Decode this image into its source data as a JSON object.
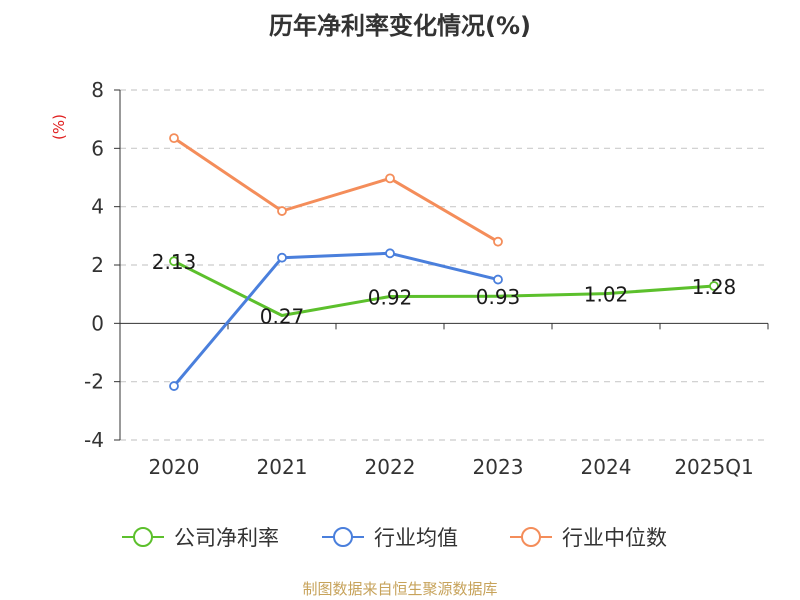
{
  "chart_data": {
    "type": "line",
    "title": "历年净利率变化情况(%)",
    "ylabel": "(%)",
    "categories": [
      "2020",
      "2021",
      "2022",
      "2023",
      "2024",
      "2025Q1"
    ],
    "ylim": [
      -4,
      8
    ],
    "yticks": [
      -4,
      -2,
      0,
      2,
      4,
      6,
      8
    ],
    "grid": true,
    "legend_position": "bottom",
    "series": [
      {
        "name": "公司净利率",
        "color": "#5cc02c",
        "values": [
          2.13,
          0.27,
          0.92,
          0.93,
          1.02,
          1.28
        ],
        "labels": [
          "2.13",
          "0.27",
          "0.92",
          "0.93",
          "1.02",
          "1.28"
        ],
        "show_labels": true,
        "markers": [
          true,
          false,
          false,
          false,
          false,
          true
        ]
      },
      {
        "name": "行业均值",
        "color": "#4a7fdc",
        "values": [
          -2.15,
          2.25,
          2.4,
          1.5,
          null,
          null
        ],
        "show_labels": false,
        "markers": [
          true,
          true,
          true,
          true,
          false,
          false
        ]
      },
      {
        "name": "行业中位数",
        "color": "#f48d5a",
        "values": [
          6.35,
          3.85,
          4.97,
          2.8,
          null,
          null
        ],
        "show_labels": false,
        "markers": [
          true,
          true,
          true,
          true,
          false,
          false
        ]
      }
    ]
  },
  "footer": {
    "source": "制图数据来自恒生聚源数据库"
  }
}
